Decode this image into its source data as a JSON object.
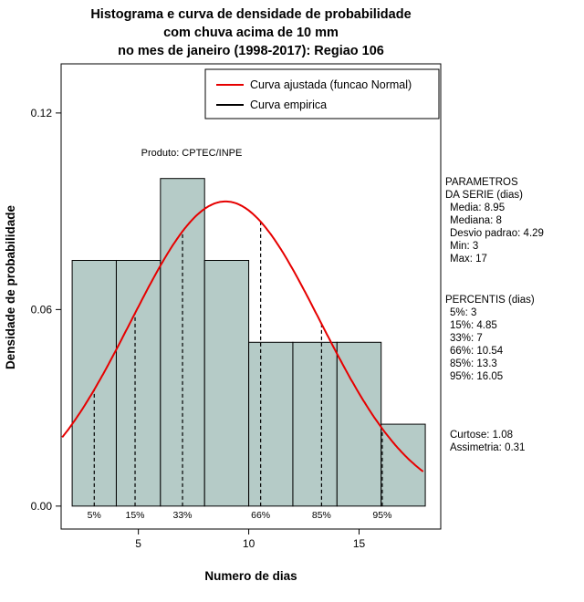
{
  "title": {
    "line1": "Histograma e curva de densidade de probabilidade",
    "line2": "com chuva acima de 10 mm",
    "line3": "no mes de janeiro (1998-2017): Regiao 106"
  },
  "legend": {
    "items": [
      {
        "label": "Curva ajustada (funcao Normal)",
        "color": "#e60000"
      },
      {
        "label": "Curva empirica",
        "color": "#000000"
      }
    ]
  },
  "watermark": "Produto: CPTEC/INPE",
  "axes": {
    "x_label": "Numero de dias",
    "y_label": "Densidade de probabilidade",
    "x_ticks": [
      5,
      10,
      15
    ],
    "y_ticks": [
      {
        "v": 0,
        "label": "0.00"
      },
      {
        "v": 0.06,
        "label": "0.06"
      },
      {
        "v": 0.12,
        "label": "0.12"
      }
    ]
  },
  "chart_data": {
    "type": "histogram_with_density_curve",
    "title": "Histograma e curva de densidade de probabilidade com chuva acima de 10 mm no mes de janeiro (1998-2017): Regiao 106",
    "xlabel": "Numero de dias",
    "ylabel": "Densidade de probabilidade",
    "xlim": [
      1.5,
      18.7
    ],
    "ylim": [
      0,
      0.13
    ],
    "grid": false,
    "legend_position": "top-center-inside",
    "histogram": {
      "bin_edges": [
        2,
        4,
        6,
        8,
        10,
        12,
        14,
        16,
        18
      ],
      "densities": [
        0.075,
        0.075,
        0.1,
        0.075,
        0.05,
        0.05,
        0.05,
        0.025
      ],
      "fill_color": "#b5cbc7",
      "edge_color": "#000000"
    },
    "normal_curve": {
      "mean": 8.95,
      "sd": 4.29,
      "color": "#e60000"
    },
    "percentiles": [
      {
        "label": "5%",
        "x": 3
      },
      {
        "label": "15%",
        "x": 4.85
      },
      {
        "label": "33%",
        "x": 7
      },
      {
        "label": "66%",
        "x": 10.54
      },
      {
        "label": "85%",
        "x": 13.3
      },
      {
        "label": "95%",
        "x": 16.05
      }
    ]
  },
  "stats_panel": {
    "params_title1": "PARAMETROS",
    "params_title2": "DA SERIE (dias)",
    "params": [
      "Media: 8.95",
      "Mediana: 8",
      "Desvio padrao: 4.29",
      "Min: 3",
      "Max: 17"
    ],
    "percentis_title": "PERCENTIS (dias)",
    "percentis": [
      "5%: 3",
      "15%: 4.85",
      "33%: 7",
      "66%: 10.54",
      "85%: 13.3",
      "95%: 16.05"
    ],
    "extra": [
      "Curtose: 1.08",
      "Assimetria: 0.31"
    ]
  }
}
